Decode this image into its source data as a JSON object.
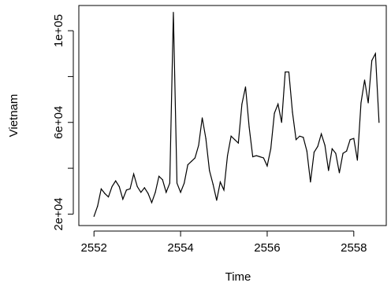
{
  "chart_data": {
    "type": "line",
    "title": "",
    "xlabel": "Time",
    "ylabel": "Vietnam",
    "xlim": [
      2551.65,
      2558.75
    ],
    "ylim": [
      15000,
      111000
    ],
    "xticks": [
      2552,
      2554,
      2556,
      2558
    ],
    "xtick_labels": [
      "2552",
      "2554",
      "2556",
      "2558"
    ],
    "yticks": [
      20000,
      40000,
      60000,
      80000,
      100000
    ],
    "ytick_labels": [
      "2e+04",
      "",
      "6e+04",
      "",
      "1e+05"
    ],
    "grid": false,
    "series": [
      {
        "name": "",
        "color": "#000000",
        "x_start": 2552.0,
        "x_step": 0.08333,
        "values": [
          19000,
          23500,
          31000,
          29000,
          27500,
          32000,
          34500,
          32000,
          26500,
          30500,
          31000,
          37500,
          32000,
          29500,
          31500,
          29000,
          25000,
          29500,
          36500,
          35000,
          29500,
          33500,
          108000,
          33500,
          29500,
          33500,
          41500,
          43000,
          44500,
          50000,
          62000,
          53000,
          39000,
          33000,
          26000,
          34000,
          30500,
          45500,
          54000,
          52500,
          51000,
          68000,
          75500,
          58000,
          45000,
          45500,
          45000,
          44500,
          41000,
          48500,
          64000,
          68000,
          60000,
          82000,
          82000,
          64500,
          52500,
          54000,
          53500,
          47500,
          34000,
          47000,
          49500,
          55000,
          50000,
          39000,
          48500,
          46500,
          38000,
          46500,
          47500,
          52500,
          53000,
          43500,
          68500,
          78500,
          68500,
          87000,
          90000,
          60000
        ]
      }
    ]
  }
}
